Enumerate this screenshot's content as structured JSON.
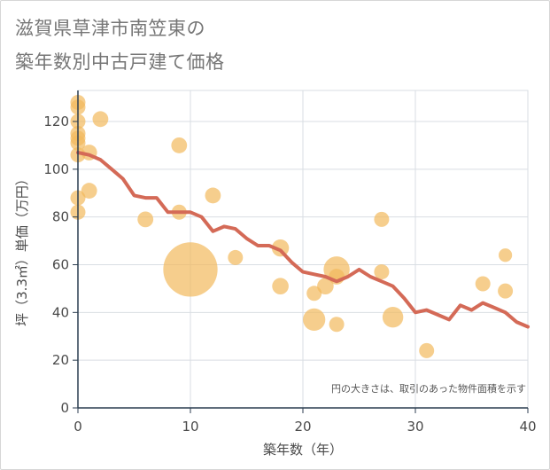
{
  "title_line1": "滋賀県草津市南笠東の",
  "title_line2": "築年数別中古戸建て価格",
  "chart_data": {
    "type": "scatter",
    "xlabel": "築年数（年）",
    "ylabel": "坪（3.3㎡）単価（万円）",
    "xlim": [
      0,
      40
    ],
    "ylim": [
      0,
      133
    ],
    "xticks": [
      0,
      10,
      20,
      30,
      40
    ],
    "yticks": [
      0,
      20,
      40,
      60,
      80,
      100,
      120
    ],
    "grid": true,
    "annotation": "円の大きさは、取引のあった物件面積を示す",
    "colors": {
      "bubble": "#f2b95c",
      "line": "#d46a57",
      "grid": "#d9dee3",
      "axis": "#2c3e50"
    },
    "series": [
      {
        "type": "bubble",
        "points": [
          {
            "x": 0,
            "y": 128,
            "size": 1
          },
          {
            "x": 0,
            "y": 126,
            "size": 1
          },
          {
            "x": 0,
            "y": 120,
            "size": 1
          },
          {
            "x": 0,
            "y": 115,
            "size": 1
          },
          {
            "x": 0,
            "y": 113,
            "size": 1
          },
          {
            "x": 0,
            "y": 111,
            "size": 1
          },
          {
            "x": 0,
            "y": 106,
            "size": 1
          },
          {
            "x": 0,
            "y": 88,
            "size": 1
          },
          {
            "x": 0,
            "y": 82,
            "size": 1
          },
          {
            "x": 1,
            "y": 107,
            "size": 1.1
          },
          {
            "x": 1,
            "y": 91,
            "size": 1.1
          },
          {
            "x": 2,
            "y": 121,
            "size": 1.1
          },
          {
            "x": 6,
            "y": 79,
            "size": 1.1
          },
          {
            "x": 9,
            "y": 110,
            "size": 1.1
          },
          {
            "x": 9,
            "y": 82,
            "size": 1
          },
          {
            "x": 10,
            "y": 58,
            "size": 13
          },
          {
            "x": 12,
            "y": 89,
            "size": 1.1
          },
          {
            "x": 14,
            "y": 63,
            "size": 1
          },
          {
            "x": 18,
            "y": 67,
            "size": 1.3
          },
          {
            "x": 18,
            "y": 51,
            "size": 1.2
          },
          {
            "x": 21,
            "y": 48,
            "size": 1
          },
          {
            "x": 21,
            "y": 37,
            "size": 2.2
          },
          {
            "x": 22,
            "y": 51,
            "size": 1.2
          },
          {
            "x": 23,
            "y": 58,
            "size": 3
          },
          {
            "x": 23,
            "y": 55,
            "size": 1.1
          },
          {
            "x": 23,
            "y": 35,
            "size": 1
          },
          {
            "x": 27,
            "y": 79,
            "size": 1
          },
          {
            "x": 27,
            "y": 57,
            "size": 1
          },
          {
            "x": 28,
            "y": 38,
            "size": 1.9
          },
          {
            "x": 31,
            "y": 24,
            "size": 1
          },
          {
            "x": 36,
            "y": 52,
            "size": 1
          },
          {
            "x": 38,
            "y": 64,
            "size": 0.8
          },
          {
            "x": 38,
            "y": 49,
            "size": 1
          }
        ]
      },
      {
        "type": "line",
        "x": [
          0,
          1,
          2,
          3,
          4,
          5,
          6,
          7,
          8,
          9,
          10,
          11,
          12,
          13,
          14,
          15,
          16,
          17,
          18,
          19,
          20,
          21,
          22,
          23,
          24,
          25,
          26,
          27,
          28,
          29,
          30,
          31,
          32,
          33,
          34,
          35,
          36,
          37,
          38,
          39,
          40
        ],
        "y": [
          107,
          106,
          104,
          100,
          96,
          89,
          88,
          88,
          82,
          82,
          82,
          80,
          74,
          76,
          75,
          71,
          68,
          68,
          66,
          61,
          57,
          56,
          55,
          53,
          55,
          58,
          55,
          53,
          51,
          46,
          40,
          41,
          39,
          37,
          43,
          41,
          44,
          42,
          40,
          36,
          34
        ]
      }
    ]
  }
}
